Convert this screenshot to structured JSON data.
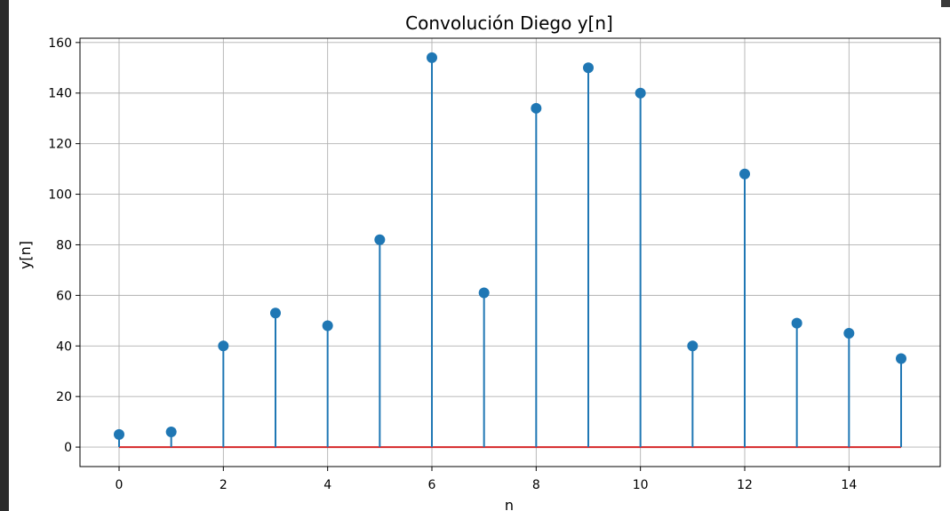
{
  "chart_data": {
    "type": "stem",
    "title": "Convolución Diego y[n]",
    "xlabel": "n",
    "ylabel": "y[n]",
    "x": [
      0,
      1,
      2,
      3,
      4,
      5,
      6,
      7,
      8,
      9,
      10,
      11,
      12,
      13,
      14,
      15
    ],
    "values": [
      5,
      6,
      40,
      53,
      48,
      82,
      154,
      61,
      134,
      150,
      140,
      40,
      108,
      49,
      45,
      35
    ],
    "xlim": [
      -0.75,
      15.75
    ],
    "ylim": [
      -7.7,
      161.7
    ],
    "xticks": [
      0,
      2,
      4,
      6,
      8,
      10,
      12,
      14
    ],
    "yticks": [
      0,
      20,
      40,
      60,
      80,
      100,
      120,
      140,
      160
    ],
    "grid": true,
    "colors": {
      "stem": "#1f77b4",
      "marker": "#1f77b4",
      "baseline": "#d62728",
      "grid": "#b0b0b0"
    }
  }
}
